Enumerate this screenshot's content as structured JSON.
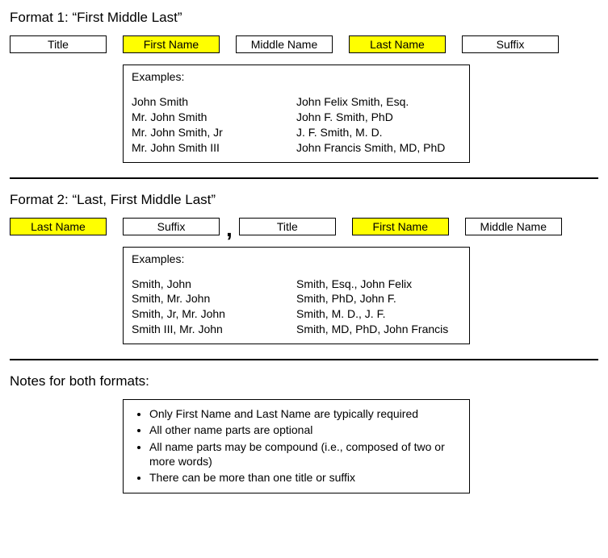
{
  "format1": {
    "heading": "Format 1: “First Middle Last”",
    "fields": {
      "title": "Title",
      "first": "First Name",
      "middle": "Middle Name",
      "last": "Last Name",
      "suffix": "Suffix"
    },
    "examples_label": "Examples:",
    "examples_left": [
      "John Smith",
      "Mr. John Smith",
      "Mr. John Smith, Jr",
      "Mr. John Smith III"
    ],
    "examples_right": [
      "John Felix Smith, Esq.",
      "John F. Smith, PhD",
      "J. F. Smith, M. D.",
      "John Francis Smith, MD, PhD"
    ]
  },
  "format2": {
    "heading": "Format 2: “Last, First Middle Last”",
    "fields": {
      "last": "Last Name",
      "suffix": "Suffix",
      "title": "Title",
      "first": "First Name",
      "middle": "Middle Name"
    },
    "comma": ",",
    "examples_label": "Examples:",
    "examples_left": [
      "Smith, John",
      "Smith, Mr. John",
      "Smith, Jr, Mr. John",
      "Smith III, Mr. John"
    ],
    "examples_right": [
      "Smith, Esq., John Felix",
      "Smith, PhD, John F.",
      "Smith, M. D., J. F.",
      "Smith, MD, PhD, John Francis"
    ]
  },
  "notes": {
    "heading": "Notes for both formats:",
    "items": [
      "Only First Name and Last Name are typically required",
      "All other name parts are optional",
      "All name parts may be compound (i.e., composed of two or more words)",
      "There can be more than one title or suffix"
    ]
  },
  "colors": {
    "highlight": "#ffff00",
    "border": "#000000",
    "background": "#ffffff",
    "text": "#000000"
  }
}
